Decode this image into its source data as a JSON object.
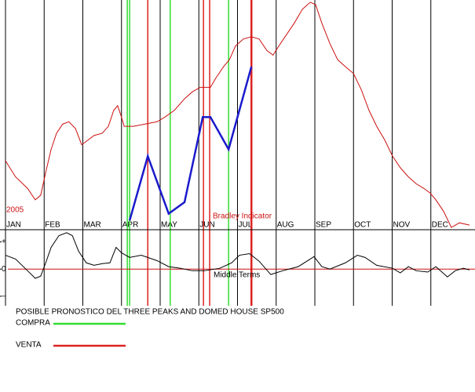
{
  "chart_data": [
    {
      "type": "line",
      "annotation": "2005",
      "xlim": [
        0,
        12
      ],
      "ylim": [
        0,
        100
      ],
      "grid": true,
      "xticks": [
        {
          "value": 0,
          "label": "JAN"
        },
        {
          "value": 1,
          "label": "FEB"
        },
        {
          "value": 2,
          "label": "MAR"
        },
        {
          "value": 3,
          "label": "APR"
        },
        {
          "value": 4,
          "label": "MAY"
        },
        {
          "value": 5,
          "label": "JUN"
        },
        {
          "value": 6,
          "label": "JUL"
        },
        {
          "value": 7,
          "label": "AUG"
        },
        {
          "value": 8,
          "label": "SEP"
        },
        {
          "value": 9,
          "label": "OCT"
        },
        {
          "value": 10,
          "label": "NOV"
        },
        {
          "value": 11,
          "label": "DEC"
        }
      ],
      "series": [
        {
          "name": "Bradley Indicator",
          "color": "#cc1111",
          "x": [
            0,
            0.26,
            0.57,
            0.77,
            0.91,
            1.04,
            1.18,
            1.32,
            1.48,
            1.64,
            1.81,
            1.97,
            2.13,
            2.29,
            2.5,
            2.66,
            2.8,
            2.9,
            3.0,
            3.07,
            3.31,
            3.61,
            3.92,
            4.12,
            4.37,
            4.63,
            4.83,
            5.04,
            5.18,
            5.3,
            5.44,
            5.64,
            5.79,
            5.95,
            6.15,
            6.36,
            6.56,
            6.76,
            6.92,
            7.07,
            7.27,
            7.47,
            7.68,
            7.88,
            8.02,
            8.18,
            8.39,
            8.59,
            8.79,
            9.0,
            9.2,
            9.4,
            9.6,
            9.81,
            10.01,
            10.21,
            10.42,
            10.62,
            10.82,
            10.98,
            11.13,
            11.33,
            11.53,
            11.74,
            12.0
          ],
          "values": [
            30,
            23,
            18,
            13,
            15,
            25,
            35,
            42,
            46,
            47,
            44,
            37,
            39,
            41,
            42,
            45,
            52,
            54,
            49,
            45,
            45,
            46,
            47,
            49,
            52,
            57,
            60,
            62,
            62,
            62,
            66,
            71,
            74,
            80,
            83,
            84,
            83,
            78,
            76,
            80,
            85,
            90,
            96,
            99,
            98,
            90,
            81,
            74,
            71,
            68,
            61,
            52,
            45,
            39,
            32,
            27,
            23,
            20,
            18,
            16,
            13,
            8,
            1,
            3,
            2
          ]
        },
        {
          "color": "#1a1acc",
          "x": [
            3.21,
            3.68,
            4.22,
            4.63,
            5.1,
            5.3,
            5.77,
            6.36
          ],
          "values": [
            4,
            32,
            7,
            12,
            49,
            49,
            35,
            71
          ]
        }
      ]
    },
    {
      "type": "line",
      "xlim": [
        0,
        12
      ],
      "ylim": [
        -1.35,
        1.45
      ],
      "yticks": [
        {
          "value": 1,
          "label": "+"
        },
        0,
        {
          "value": -1,
          "label": "–"
        }
      ],
      "series": [
        {
          "name": "Middle Terms",
          "color": "#000000",
          "x": [
            0,
            0.26,
            0.57,
            0.77,
            0.91,
            1.04,
            1.18,
            1.38,
            1.58,
            1.73,
            1.89,
            2.09,
            2.29,
            2.5,
            2.7,
            2.86,
            3.0,
            3.21,
            3.51,
            3.92,
            4.22,
            4.53,
            4.83,
            5.14,
            5.54,
            5.85,
            6.05,
            6.31,
            6.56,
            6.86,
            7.17,
            7.57,
            7.98,
            8.18,
            8.39,
            8.79,
            9.1,
            9.3,
            9.6,
            10.01,
            10.21,
            10.42,
            10.62,
            10.92,
            11.13,
            11.43,
            11.63,
            11.84,
            12.0
          ],
          "values": [
            0.51,
            0.37,
            -0.06,
            -0.34,
            -0.26,
            0.23,
            0.8,
            1.23,
            1.34,
            1.23,
            0.66,
            0.23,
            0.14,
            0.2,
            0.23,
            0.8,
            0.6,
            0.43,
            0.51,
            0.31,
            0.09,
            0.03,
            -0.06,
            -0.06,
            0.03,
            0.23,
            0.51,
            0.57,
            0.29,
            -0.2,
            -0.06,
            0.09,
            0.46,
            0.09,
            0,
            0.23,
            0.51,
            0.43,
            0.14,
            0.03,
            -0.14,
            0.09,
            -0.06,
            -0.11,
            0.09,
            -0.29,
            -0.06,
            0.03,
            -0.03
          ]
        }
      ]
    }
  ],
  "legend": {
    "title": "POSIBLE PRONOSTICO DEL THREE PEAKS AND DOMED HOUSE SP500",
    "items": [
      {
        "label": "COMPRA",
        "color": "#33dd33",
        "x": [
          3.15,
          3.21,
          4.26,
          5.77
        ]
      },
      {
        "label": "VENTA",
        "color": "#dd2222",
        "x": [
          3.68,
          5.12,
          5.28,
          6.36
        ]
      }
    ]
  }
}
